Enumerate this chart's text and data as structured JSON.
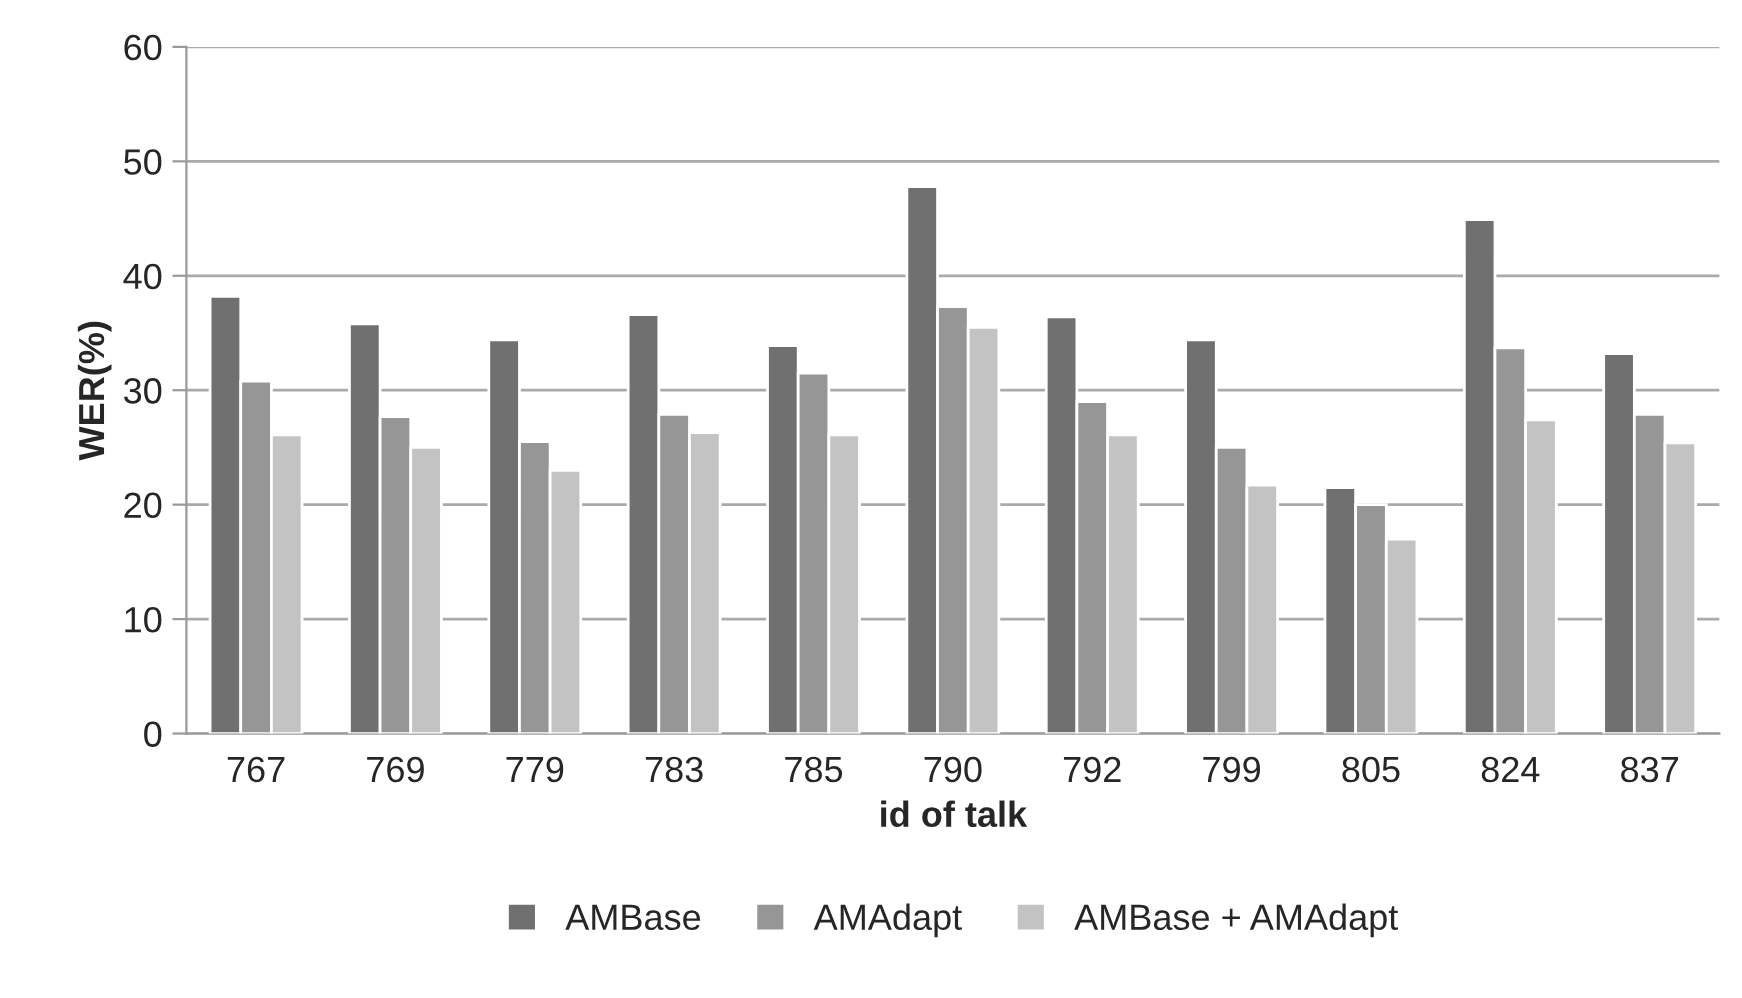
{
  "chart_data": {
    "type": "bar",
    "xlabel": "id of talk",
    "ylabel": "WER(%)",
    "categories": [
      "767",
      "769",
      "779",
      "783",
      "785",
      "790",
      "792",
      "799",
      "805",
      "824",
      "837"
    ],
    "series": [
      {
        "name": "AMBase",
        "color": "#707070",
        "values": [
          38.2,
          35.8,
          34.4,
          36.6,
          33.9,
          47.8,
          36.4,
          34.4,
          21.5,
          44.9,
          33.2
        ]
      },
      {
        "name": "AMAdapt",
        "color": "#969696",
        "values": [
          30.8,
          27.7,
          25.5,
          27.9,
          31.5,
          37.3,
          29.0,
          25.0,
          20.0,
          33.7,
          27.9
        ]
      },
      {
        "name": "AMBase + AMAdapt",
        "color": "#c3c3c3",
        "values": [
          26.1,
          25.0,
          23.0,
          26.3,
          26.1,
          35.5,
          26.1,
          21.7,
          17.0,
          27.4,
          25.4
        ]
      }
    ],
    "ylim": [
      0,
      60
    ],
    "yticks": [
      0,
      10,
      20,
      30,
      40,
      50,
      60
    ],
    "grid": "y",
    "legend": "bottom"
  }
}
